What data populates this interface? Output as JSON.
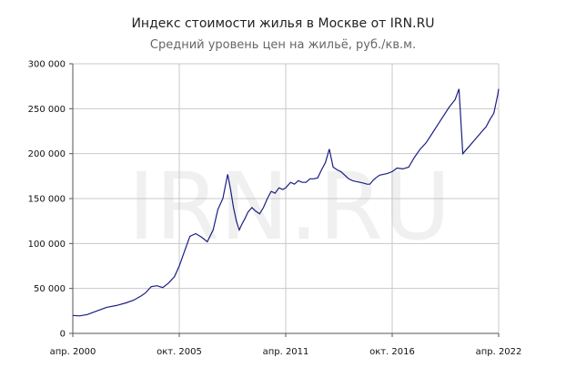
{
  "title": "Индекс стоимости жилья в Москве от IRN.RU",
  "subtitle": "Средний уровень цен на жильё, руб./кв.м.",
  "watermark": "IRN.RU",
  "colors": {
    "line": "#1a1f80",
    "grid": "#c8c8c8",
    "axis": "#555555"
  },
  "chart_data": {
    "type": "line",
    "title": "Индекс стоимости жилья в Москве от IRN.RU",
    "subtitle": "Средний уровень цен на жильё, руб./кв.м.",
    "xlabel": "",
    "ylabel": "",
    "xlim": [
      2000.25,
      2022.25
    ],
    "ylim": [
      0,
      300000
    ],
    "grid": true,
    "x_ticks": [
      {
        "x": 2000.25,
        "label": "апр. 2000"
      },
      {
        "x": 2005.75,
        "label": "окт. 2005"
      },
      {
        "x": 2011.25,
        "label": "апр. 2011"
      },
      {
        "x": 2016.75,
        "label": "окт. 2016"
      },
      {
        "x": 2022.25,
        "label": "апр. 2022"
      }
    ],
    "y_ticks": [
      {
        "y": 0,
        "label": "0"
      },
      {
        "y": 50000,
        "label": "50 000"
      },
      {
        "y": 100000,
        "label": "100 000"
      },
      {
        "y": 150000,
        "label": "150 000"
      },
      {
        "y": 200000,
        "label": "200 000"
      },
      {
        "y": 250000,
        "label": "250 000"
      },
      {
        "y": 300000,
        "label": "300 000"
      }
    ],
    "series": [
      {
        "x": [
          2000.25,
          2000.6,
          2001.0,
          2001.5,
          2002.0,
          2002.5,
          2003.0,
          2003.4,
          2003.8,
          2004.0,
          2004.3,
          2004.6,
          2004.9,
          2005.2,
          2005.5,
          2005.75,
          2006.0,
          2006.3,
          2006.6,
          2006.9,
          2007.2,
          2007.5,
          2007.75,
          2008.0,
          2008.25,
          2008.4,
          2008.55,
          2008.7,
          2008.85,
          2009.0,
          2009.15,
          2009.3,
          2009.5,
          2009.7,
          2009.9,
          2010.1,
          2010.3,
          2010.5,
          2010.7,
          2010.9,
          2011.1,
          2011.25,
          2011.5,
          2011.7,
          2011.9,
          2012.1,
          2012.3,
          2012.5,
          2012.7,
          2012.9,
          2013.1,
          2013.3,
          2013.5,
          2013.7,
          2013.9,
          2014.1,
          2014.3,
          2014.5,
          2014.7,
          2014.9,
          2015.1,
          2015.3,
          2015.45,
          2015.6,
          2015.75,
          2015.9,
          2016.1,
          2016.3,
          2016.5,
          2016.75,
          2017.0,
          2017.3,
          2017.6,
          2017.9,
          2018.2,
          2018.5,
          2018.8,
          2019.1,
          2019.4,
          2019.7,
          2020.0,
          2020.2,
          2020.4,
          2020.6,
          2020.8,
          2021.0,
          2021.2,
          2021.4,
          2021.6,
          2021.8,
          2022.0,
          2022.1,
          2022.2,
          2022.25
        ],
        "values": [
          20000,
          19500,
          21000,
          25000,
          29000,
          31000,
          34000,
          37000,
          42000,
          45000,
          52000,
          53000,
          51000,
          56000,
          63000,
          75000,
          90000,
          108000,
          111000,
          107000,
          102000,
          115000,
          138000,
          150000,
          177000,
          160000,
          140000,
          125000,
          115000,
          122000,
          128000,
          135000,
          140000,
          136000,
          133000,
          140000,
          150000,
          158000,
          156000,
          162000,
          160000,
          162000,
          168000,
          166000,
          170000,
          168000,
          168000,
          172000,
          172000,
          173000,
          182000,
          190000,
          205000,
          185000,
          182000,
          180000,
          176000,
          172000,
          170000,
          169000,
          168000,
          167000,
          166000,
          166000,
          170000,
          173000,
          176000,
          177000,
          178000,
          180000,
          184000,
          183000,
          185000,
          196000,
          205000,
          212000,
          222000,
          232000,
          242000,
          252000,
          260000,
          272000,
          200000,
          205000,
          210000,
          215000,
          220000,
          225000,
          230000,
          238000,
          245000,
          255000,
          265000,
          272000
        ]
      }
    ]
  }
}
